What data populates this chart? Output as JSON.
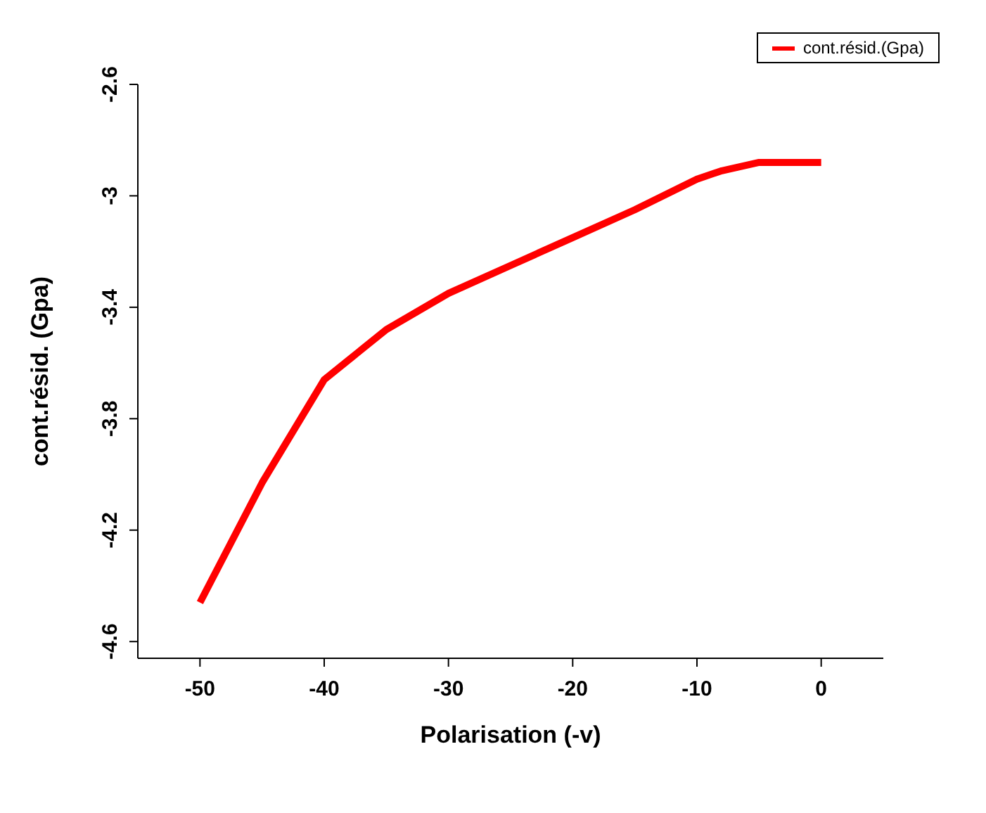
{
  "chart_data": {
    "type": "line",
    "xlabel": "Polarisation (-v)",
    "ylabel": "cont.résid. (Gpa)",
    "x": [
      -50,
      -45,
      -40,
      -35,
      -30,
      -25,
      -20,
      -15,
      -10,
      -8,
      -5,
      0
    ],
    "series": [
      {
        "name": "cont.résid.(Gpa)",
        "color": "#ff0000",
        "values": [
          -4.46,
          -4.03,
          -3.66,
          -3.48,
          -3.35,
          -3.25,
          -3.15,
          -3.05,
          -2.94,
          -2.91,
          -2.88,
          -2.88
        ]
      }
    ],
    "xlim": [
      -55,
      5
    ],
    "xticks": [
      -50,
      -40,
      -30,
      -20,
      -10,
      0
    ],
    "ylim": [
      -4.66,
      -2.6
    ],
    "yticks": [
      -2.6,
      -3.0,
      -3.4,
      -3.8,
      -4.2,
      -4.6
    ],
    "grid": false,
    "legend": "top right",
    "marker": "none",
    "line_style": "solid"
  }
}
